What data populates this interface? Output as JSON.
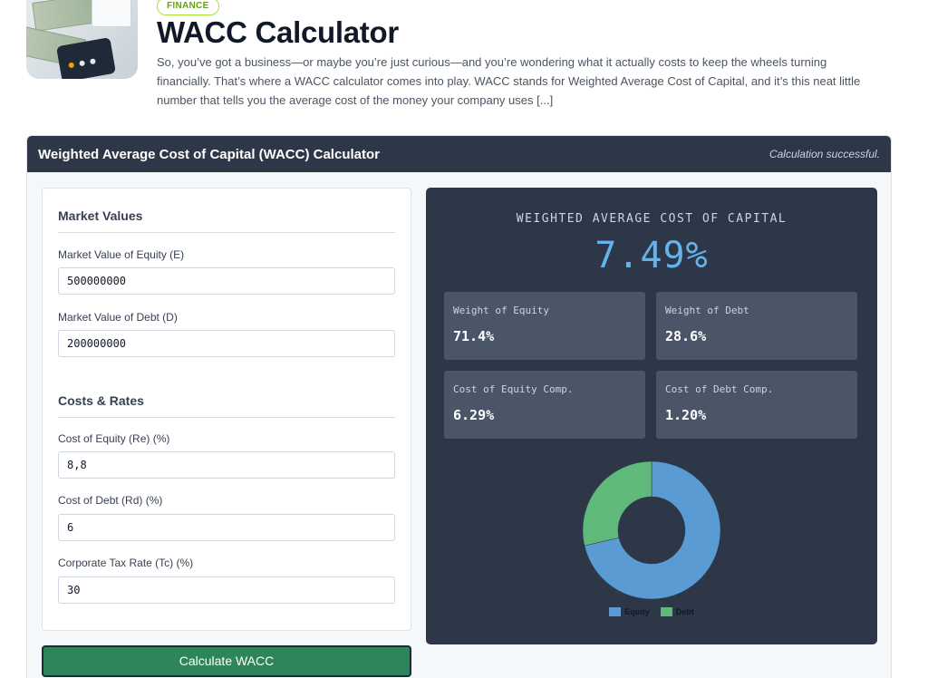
{
  "article": {
    "badge": "FINANCE",
    "title": "WACC Calculator",
    "excerpt": "So, you’ve got a business—or maybe you’re just curious—and you’re wondering what it actually costs to keep the wheels turning financially. That’s where a WACC calculator comes into play. WACC stands for Weighted Average Cost of Capital, and it’s this neat little number that tells you the average cost of the money your company uses [...]"
  },
  "calculator": {
    "title": "Weighted Average Cost of Capital (WACC) Calculator",
    "status": "Calculation successful."
  },
  "form": {
    "market_section": "Market Values",
    "equity_label": "Market Value of Equity (E)",
    "equity_value": "500000000",
    "debt_label": "Market Value of Debt (D)",
    "debt_value": "200000000",
    "costs_section": "Costs & Rates",
    "re_label": "Cost of Equity (Re) (%)",
    "re_value": "8,8",
    "rd_label": "Cost of Debt (Rd) (%)",
    "rd_value": "6",
    "tc_label": "Corporate Tax Rate (Tc) (%)",
    "tc_value": "30",
    "button_label": "Calculate WACC"
  },
  "results": {
    "heading": "WEIGHTED AVERAGE COST OF CAPITAL",
    "wacc": "7.49%",
    "tiles": [
      {
        "label": "Weight of Equity",
        "value": "71.4%"
      },
      {
        "label": "Weight of Debt",
        "value": "28.6%"
      },
      {
        "label": "Cost of Equity Comp.",
        "value": "6.29%"
      },
      {
        "label": "Cost of Debt Comp.",
        "value": "1.20%"
      }
    ]
  },
  "chart_data": {
    "type": "pie",
    "categories": [
      "Equity",
      "Debt"
    ],
    "values": [
      71.4,
      28.6
    ],
    "colors": [
      "#5a9bd4",
      "#5fb97a"
    ],
    "legend": "bottom"
  },
  "colors": {
    "header_bg": "#2d3748",
    "accent_blue": "#63b3ed",
    "button_green": "#2f855a",
    "badge_green": "#a3e635"
  }
}
